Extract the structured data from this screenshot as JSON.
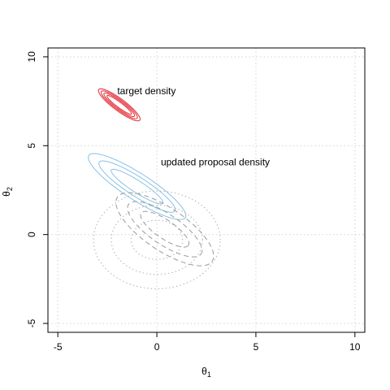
{
  "chart_data": {
    "type": "contour",
    "xlabel": "θ",
    "xlabel_sub": "1",
    "ylabel": "θ",
    "ylabel_sub": "2",
    "xlim": [
      -5.5,
      10.5
    ],
    "ylim": [
      -5.5,
      10.5
    ],
    "x_ticks": [
      -5,
      0,
      5,
      10
    ],
    "y_ticks": [
      -5,
      0,
      5,
      10
    ],
    "x_tick_labels": [
      "-5",
      "0",
      "5",
      "10"
    ],
    "y_tick_labels": [
      "-5",
      "0",
      "5",
      "10"
    ],
    "grid": true,
    "grid_style": "dotted",
    "annotations": [
      {
        "text": "target density",
        "x": -2.0,
        "y": 7.9
      },
      {
        "text": "updated proposal density",
        "x": 0.2,
        "y": 3.9
      }
    ],
    "series": [
      {
        "role": "target",
        "color": "#e3262f",
        "line_style": "solid",
        "center": [
          -1.9,
          7.3
        ],
        "major_axis_angle_deg": -40,
        "contours": [
          {
            "semi_major": 1.35,
            "semi_minor": 0.32
          },
          {
            "semi_major": 1.18,
            "semi_minor": 0.26
          },
          {
            "semi_major": 1.0,
            "semi_minor": 0.2
          },
          {
            "semi_major": 0.8,
            "semi_minor": 0.14
          }
        ]
      },
      {
        "role": "updated proposal",
        "color": "#86c2e6",
        "line_style": "solid",
        "center": [
          -1.0,
          2.7
        ],
        "major_axis_angle_deg": -36,
        "contours": [
          {
            "semi_major": 3.0,
            "semi_minor": 0.72
          },
          {
            "semi_major": 2.35,
            "semi_minor": 0.52
          },
          {
            "semi_major": 1.6,
            "semi_minor": 0.32
          }
        ]
      },
      {
        "role": "previous proposal",
        "color": "#9a9a9a",
        "line_style": "dashed",
        "center": [
          0.4,
          0.3
        ],
        "major_axis_angle_deg": -38,
        "contours": [
          {
            "semi_major": 3.0,
            "semi_minor": 1.15
          },
          {
            "semi_major": 2.3,
            "semi_minor": 0.82
          },
          {
            "semi_major": 1.5,
            "semi_minor": 0.5
          }
        ]
      },
      {
        "role": "initial proposal",
        "color": "#b0b0b0",
        "line_style": "dotted",
        "center": [
          0.0,
          -0.3
        ],
        "major_axis_angle_deg": 0,
        "contours": [
          {
            "semi_major": 3.2,
            "semi_minor": 2.75
          },
          {
            "semi_major": 2.3,
            "semi_minor": 1.95
          },
          {
            "semi_major": 1.3,
            "semi_minor": 1.1
          }
        ]
      }
    ]
  }
}
